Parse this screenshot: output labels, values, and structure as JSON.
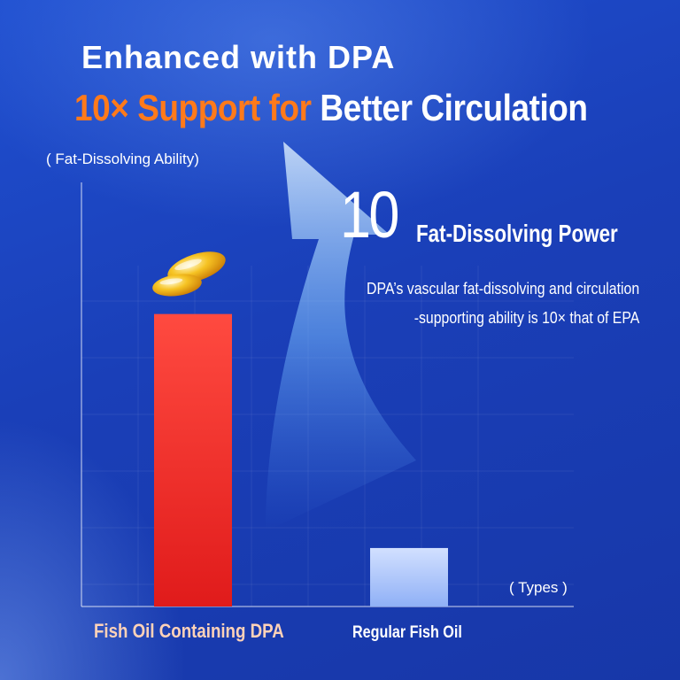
{
  "header": {
    "headline": "Enhanced with DPA",
    "subhead_accent": "10× Support for",
    "subhead_rest": "Better Circulation"
  },
  "callout": {
    "number": "10",
    "label": "Fat-Dissolving Power",
    "description_line1": "DPA’s vascular fat-dissolving and circulation",
    "description_line2": "-supporting ability is 10× that of EPA"
  },
  "chart_data": {
    "type": "bar",
    "categories": [
      "Fish Oil Containing DPA",
      "Regular Fish Oil"
    ],
    "values": [
      10,
      2
    ],
    "ylabel": "( Fat-Dissolving Ability)",
    "xlabel": "( Types )",
    "ylim": [
      0,
      14.5
    ],
    "grid": true,
    "bar_colors": [
      "#e8201f",
      "#b8cdfb"
    ],
    "decorations": [
      "capsule-icon",
      "up-arrow-icon"
    ]
  },
  "colors": {
    "background": "#1a3fb8",
    "accent": "#ff7a1a",
    "bar_dpa": "#e8201f",
    "bar_regular": "#b8cdfb",
    "capsule": "#f3b514"
  }
}
